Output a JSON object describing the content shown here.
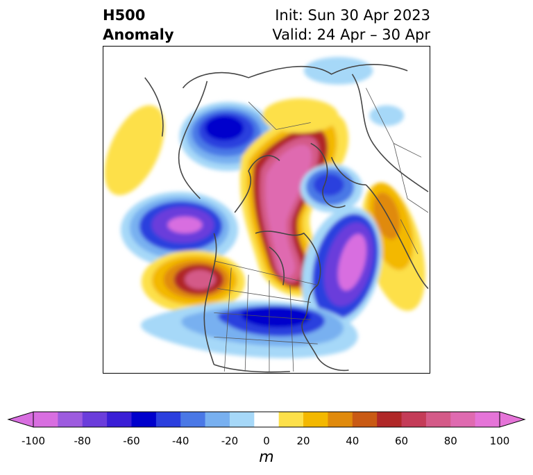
{
  "title": {
    "main_line1": "H500",
    "main_line2": "Anomaly",
    "init": "Init: Sun 30 Apr 2023",
    "valid": "Valid: 24 Apr – 30 Apr"
  },
  "map": {
    "projection": "polar stereographic (North America / Arctic)",
    "features": [
      "coastlines",
      "country borders",
      "US state borders",
      "Canadian province borders"
    ]
  },
  "colorbar": {
    "units": "m",
    "extend": "both",
    "ticks": [
      "-100",
      "-80",
      "-60",
      "-40",
      "-20",
      "0",
      "20",
      "40",
      "60",
      "80",
      "100"
    ],
    "levels": [
      -100,
      -90,
      -80,
      -70,
      -60,
      -50,
      -40,
      -30,
      -20,
      -10,
      10,
      20,
      30,
      40,
      50,
      60,
      70,
      80,
      90,
      100
    ],
    "colors": [
      "#d86ee0",
      "#9d5bdf",
      "#6b3ddb",
      "#3a1ed6",
      "#0000cc",
      "#2b3fde",
      "#4a78e6",
      "#78b0f0",
      "#a6d8f8",
      "#ffffff",
      "#fde04a",
      "#f3b800",
      "#e08a0c",
      "#c95a14",
      "#b02828",
      "#c43c58",
      "#d45a88",
      "#df6ab0",
      "#e574d8"
    ],
    "under_color": "#d86ee0",
    "over_color": "#e574d8"
  }
}
